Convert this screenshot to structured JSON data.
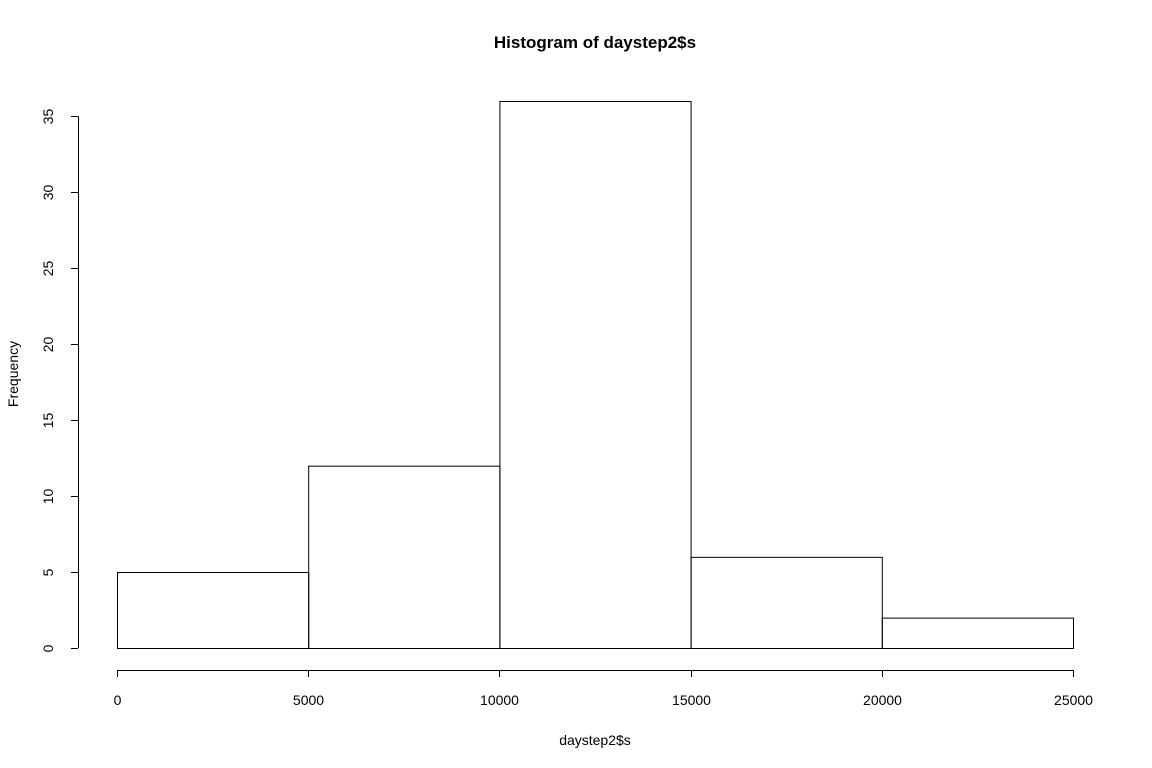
{
  "chart_data": {
    "type": "bar",
    "title": "Histogram of daystep2$s",
    "xlabel": "daystep2$s",
    "ylabel": "Frequency",
    "bins": [
      {
        "start": 0,
        "end": 5000,
        "count": 5
      },
      {
        "start": 5000,
        "end": 10000,
        "count": 12
      },
      {
        "start": 10000,
        "end": 15000,
        "count": 36
      },
      {
        "start": 15000,
        "end": 20000,
        "count": 6
      },
      {
        "start": 20000,
        "end": 25000,
        "count": 2
      }
    ],
    "xlim": [
      0,
      25000
    ],
    "ylim": [
      0,
      35
    ],
    "x_ticks": [
      "0",
      "5000",
      "10000",
      "15000",
      "20000",
      "25000"
    ],
    "y_ticks": [
      "0",
      "5",
      "10",
      "15",
      "20",
      "25",
      "30",
      "35"
    ],
    "grid": false,
    "colors": {
      "bar_fill": "#ffffff",
      "bar_stroke": "#000000"
    }
  }
}
